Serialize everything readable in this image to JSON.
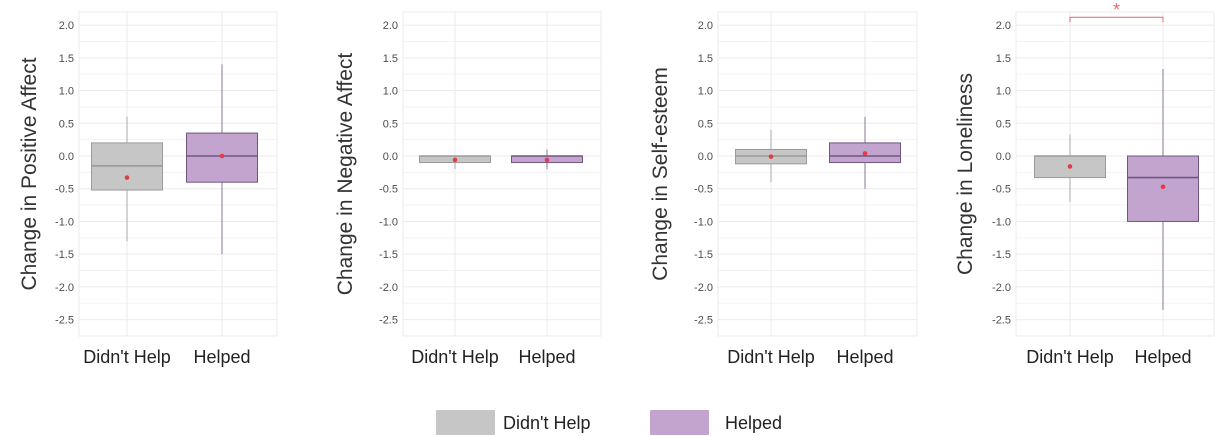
{
  "chart_data": [
    {
      "type": "box",
      "ylabel": "Change in Positive Affect",
      "categories": [
        "Didn't Help",
        "Helped"
      ],
      "ylim": [
        -2.75,
        2.2
      ],
      "yticks": [
        2.0,
        1.5,
        1.0,
        0.5,
        0.0,
        -0.5,
        -1.0,
        -1.5,
        -2.0,
        -2.5
      ],
      "boxes": [
        {
          "category": "Didn't Help",
          "whisker_low": -1.3,
          "q1": -0.52,
          "median": -0.15,
          "q3": 0.2,
          "whisker_high": 0.6,
          "mean": -0.33
        },
        {
          "category": "Helped",
          "whisker_low": -1.5,
          "q1": -0.4,
          "median": 0.0,
          "q3": 0.35,
          "whisker_high": 1.4,
          "mean": 0.0
        }
      ]
    },
    {
      "type": "box",
      "ylabel": "Change in Negative Affect",
      "categories": [
        "Didn't Help",
        "Helped"
      ],
      "ylim": [
        -2.75,
        2.2
      ],
      "yticks": [
        2.0,
        1.5,
        1.0,
        0.5,
        0.0,
        -0.5,
        -1.0,
        -1.5,
        -2.0,
        -2.5
      ],
      "boxes": [
        {
          "category": "Didn't Help",
          "whisker_low": -0.2,
          "q1": -0.1,
          "median": 0.0,
          "q3": 0.0,
          "whisker_high": 0.0,
          "mean": -0.06
        },
        {
          "category": "Helped",
          "whisker_low": -0.2,
          "q1": -0.1,
          "median": 0.0,
          "q3": 0.0,
          "whisker_high": 0.1,
          "mean": -0.06
        }
      ]
    },
    {
      "type": "box",
      "ylabel": "Change in Self-esteem",
      "categories": [
        "Didn't Help",
        "Helped"
      ],
      "ylim": [
        -2.75,
        2.2
      ],
      "yticks": [
        2.0,
        1.5,
        1.0,
        0.5,
        0.0,
        -0.5,
        -1.0,
        -1.5,
        -2.0,
        -2.5
      ],
      "boxes": [
        {
          "category": "Didn't Help",
          "whisker_low": -0.4,
          "q1": -0.12,
          "median": 0.0,
          "q3": 0.1,
          "whisker_high": 0.4,
          "mean": -0.01
        },
        {
          "category": "Helped",
          "whisker_low": -0.5,
          "q1": -0.1,
          "median": 0.0,
          "q3": 0.2,
          "whisker_high": 0.6,
          "mean": 0.04
        }
      ]
    },
    {
      "type": "box",
      "ylabel": "Change in Loneliness",
      "categories": [
        "Didn't Help",
        "Helped"
      ],
      "ylim": [
        -2.75,
        2.2
      ],
      "yticks": [
        2.0,
        1.5,
        1.0,
        0.5,
        0.0,
        -0.5,
        -1.0,
        -1.5,
        -2.0,
        -2.5
      ],
      "significance": {
        "label": "*",
        "between": [
          "Didn't Help",
          "Helped"
        ],
        "y": 2.12
      },
      "boxes": [
        {
          "category": "Didn't Help",
          "whisker_low": -0.7,
          "q1": -0.33,
          "median": 0.0,
          "q3": 0.0,
          "whisker_high": 0.33,
          "mean": -0.16
        },
        {
          "category": "Helped",
          "whisker_low": -2.35,
          "q1": -1.0,
          "median": -0.33,
          "q3": 0.0,
          "whisker_high": 1.33,
          "mean": -0.47
        }
      ]
    }
  ],
  "legend": {
    "placement": "bottom",
    "items": [
      {
        "label": "Didn't Help",
        "color": "#c6c6c6"
      },
      {
        "label": "Helped",
        "color": "#c2a4cf"
      }
    ]
  },
  "colors": {
    "didnt_help_fill": "#c6c6c6",
    "didnt_help_stroke": "#9a9a9a",
    "helped_fill": "#c2a4cf",
    "helped_stroke": "#6f5680",
    "mean_dot": "#e03c4a",
    "significance": "#e06a73"
  }
}
